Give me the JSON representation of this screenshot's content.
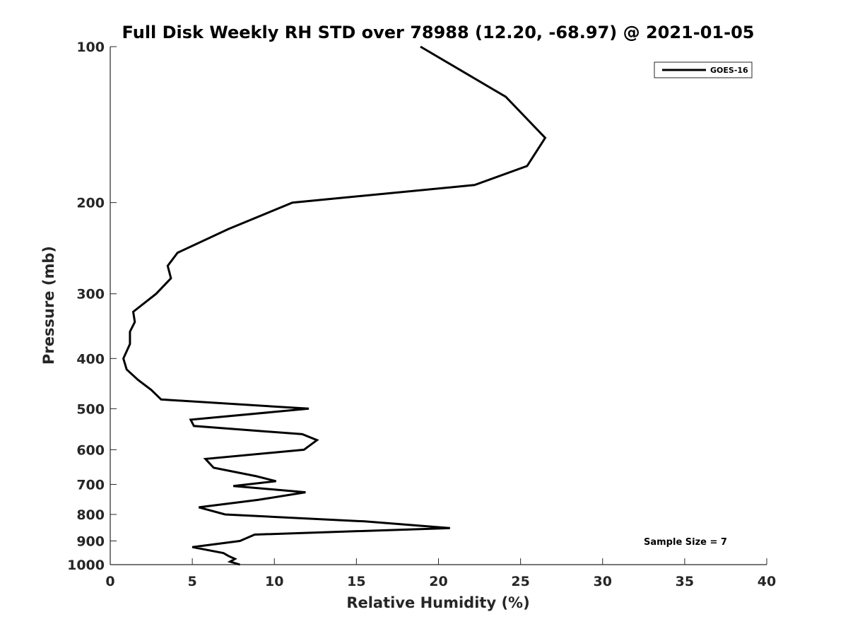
{
  "chart_data": {
    "type": "line",
    "title": "Full Disk Weekly RH STD over 78988 (12.20, -68.97) @ 2021-01-05",
    "xlabel": "Relative Humidity (%)",
    "ylabel": "Pressure (mb)",
    "xlim": [
      0,
      40
    ],
    "ylim": [
      100,
      1000
    ],
    "y_scale": "log",
    "y_reversed": true,
    "x_ticks": [
      "0",
      "5",
      "10",
      "15",
      "20",
      "25",
      "30",
      "35",
      "40"
    ],
    "y_ticks": [
      "100",
      "200",
      "300",
      "400",
      "500",
      "600",
      "700",
      "800",
      "900",
      "1000"
    ],
    "grid": false,
    "legend": {
      "position": "top-right",
      "entries": [
        "GOES-16"
      ]
    },
    "series": [
      {
        "name": "GOES-16",
        "color": "#000000",
        "points": [
          [
            18.9,
            100
          ],
          [
            24.1,
            125
          ],
          [
            26.5,
            150
          ],
          [
            25.4,
            170
          ],
          [
            22.2,
            185
          ],
          [
            11.1,
            200
          ],
          [
            7.2,
            225
          ],
          [
            4.1,
            250
          ],
          [
            3.5,
            265
          ],
          [
            3.7,
            280
          ],
          [
            2.8,
            300
          ],
          [
            1.4,
            325
          ],
          [
            1.5,
            340
          ],
          [
            1.2,
            355
          ],
          [
            1.2,
            375
          ],
          [
            0.8,
            400
          ],
          [
            1.0,
            420
          ],
          [
            1.7,
            440
          ],
          [
            2.5,
            460
          ],
          [
            3.1,
            480
          ],
          [
            12.1,
            500
          ],
          [
            4.9,
            525
          ],
          [
            5.1,
            540
          ],
          [
            11.7,
            560
          ],
          [
            12.6,
            575
          ],
          [
            11.8,
            600
          ],
          [
            5.8,
            625
          ],
          [
            6.3,
            650
          ],
          [
            8.9,
            675
          ],
          [
            10.1,
            690
          ],
          [
            7.5,
            705
          ],
          [
            11.9,
            725
          ],
          [
            9.0,
            750
          ],
          [
            5.4,
            775
          ],
          [
            7.0,
            800
          ],
          [
            15.5,
            825
          ],
          [
            20.7,
            850
          ],
          [
            8.8,
            875
          ],
          [
            7.9,
            900
          ],
          [
            5.0,
            925
          ],
          [
            6.9,
            950
          ],
          [
            7.2,
            962
          ],
          [
            7.6,
            975
          ],
          [
            7.3,
            987
          ],
          [
            7.9,
            1000
          ]
        ]
      }
    ],
    "annotations": [
      "Sample Size = 7"
    ]
  }
}
